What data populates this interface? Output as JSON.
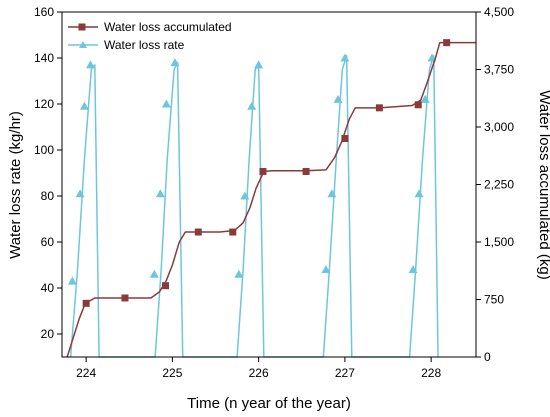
{
  "chart_data": {
    "type": "line",
    "xlabel": "Time (n year of the year)",
    "ylabel_left": "Water loss rate (kg/hr)",
    "ylabel_right": "Water loss accumulated (kg)",
    "xlim": [
      223.72,
      228.52
    ],
    "ylim_left": [
      10,
      160
    ],
    "ylim_right": [
      0,
      4500
    ],
    "x_ticks": [
      "224",
      "225",
      "226",
      "227",
      "228"
    ],
    "y_left_ticks": [
      "20",
      "40",
      "60",
      "80",
      "100",
      "120",
      "140",
      "160"
    ],
    "y_right_ticks": [
      "0",
      "750",
      "1,500",
      "2,250",
      "3,000",
      "3,750",
      "4,500"
    ],
    "grid": false,
    "legend_position": "top-left",
    "colors": {
      "accumulated": "#8b3a3a",
      "rate": "#6ec6dd"
    },
    "series": [
      {
        "name": "Water loss accumulated",
        "axis": "right",
        "points": [
          [
            223.78,
            0
          ],
          [
            223.85,
            250
          ],
          [
            223.92,
            500
          ],
          [
            223.99,
            700
          ],
          [
            224.1,
            770
          ],
          [
            224.45,
            770
          ],
          [
            224.75,
            770
          ],
          [
            224.85,
            850
          ],
          [
            224.93,
            1000
          ],
          [
            225.0,
            1200
          ],
          [
            225.08,
            1500
          ],
          [
            225.15,
            1630
          ],
          [
            225.3,
            1630
          ],
          [
            225.55,
            1630
          ],
          [
            225.72,
            1650
          ],
          [
            225.82,
            1750
          ],
          [
            225.9,
            1950
          ],
          [
            225.97,
            2200
          ],
          [
            226.06,
            2420
          ],
          [
            226.15,
            2430
          ],
          [
            226.55,
            2430
          ],
          [
            226.78,
            2440
          ],
          [
            226.88,
            2600
          ],
          [
            226.96,
            2800
          ],
          [
            227.05,
            3100
          ],
          [
            227.12,
            3250
          ],
          [
            227.4,
            3250
          ],
          [
            227.78,
            3280
          ],
          [
            227.88,
            3350
          ],
          [
            227.96,
            3600
          ],
          [
            228.05,
            3900
          ],
          [
            228.1,
            4100
          ],
          [
            228.52,
            4100
          ]
        ],
        "markers": [
          [
            224.0,
            700
          ],
          [
            224.45,
            770
          ],
          [
            224.92,
            930
          ],
          [
            225.3,
            1630
          ],
          [
            225.7,
            1630
          ],
          [
            226.05,
            2420
          ],
          [
            226.55,
            2420
          ],
          [
            227.0,
            2850
          ],
          [
            227.4,
            3250
          ],
          [
            227.85,
            3290
          ],
          [
            228.18,
            4100
          ]
        ]
      },
      {
        "name": "Water loss rate",
        "axis": "left",
        "points": [
          [
            223.82,
            10
          ],
          [
            223.9,
            48
          ],
          [
            223.98,
            96
          ],
          [
            224.06,
            135
          ],
          [
            224.1,
            137
          ],
          [
            224.15,
            10
          ],
          [
            224.8,
            10
          ],
          [
            224.87,
            48
          ],
          [
            224.94,
            96
          ],
          [
            225.02,
            135
          ],
          [
            225.06,
            138
          ],
          [
            225.12,
            10
          ],
          [
            225.75,
            10
          ],
          [
            225.82,
            48
          ],
          [
            225.89,
            96
          ],
          [
            225.96,
            135
          ],
          [
            226.0,
            137
          ],
          [
            226.06,
            10
          ],
          [
            226.75,
            10
          ],
          [
            226.82,
            48
          ],
          [
            226.9,
            96
          ],
          [
            226.97,
            135
          ],
          [
            227.02,
            141
          ],
          [
            227.08,
            10
          ],
          [
            227.75,
            10
          ],
          [
            227.82,
            48
          ],
          [
            227.9,
            96
          ],
          [
            227.98,
            135
          ],
          [
            228.03,
            141
          ],
          [
            228.08,
            10
          ]
        ],
        "markers": [
          [
            223.84,
            43
          ],
          [
            223.93,
            81
          ],
          [
            223.98,
            119
          ],
          [
            224.05,
            137
          ],
          [
            224.79,
            46
          ],
          [
            224.86,
            81
          ],
          [
            224.93,
            120
          ],
          [
            225.03,
            138
          ],
          [
            225.77,
            46
          ],
          [
            225.84,
            80
          ],
          [
            225.92,
            119
          ],
          [
            226.0,
            137
          ],
          [
            226.78,
            48
          ],
          [
            226.85,
            81
          ],
          [
            226.92,
            122
          ],
          [
            227.0,
            140
          ],
          [
            227.79,
            48
          ],
          [
            227.86,
            81
          ],
          [
            227.93,
            122
          ],
          [
            228.01,
            140
          ]
        ]
      }
    ]
  }
}
